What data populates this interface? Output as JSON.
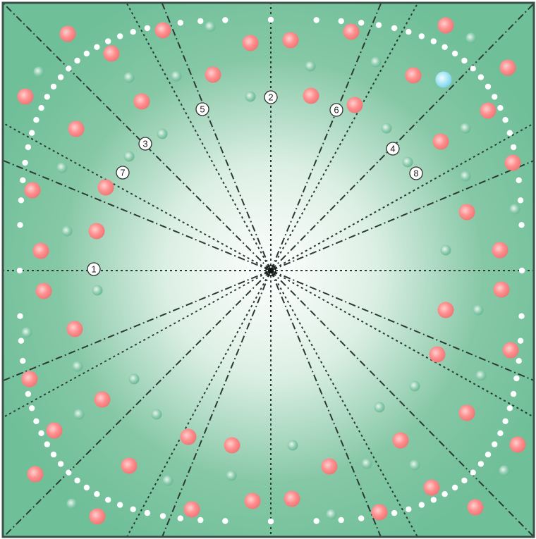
{
  "board": {
    "colors": {
      "background_center": "#ffffff",
      "background_edge": "#6fbf99",
      "frame": "#3a5048",
      "line": "#2b3a33",
      "white_dot": "#ffffff",
      "red_orb": "#ff8a8a",
      "green_orb": "#86c8a6",
      "blue_orb": "#9fe3f5"
    },
    "icons": {
      "red_orb": "red-orb-icon",
      "green_orb": "green-orb-icon",
      "blue_orb": "blue-orb-icon",
      "white_dot": "white-dot-icon"
    },
    "line_labels": [
      {
        "text": "1"
      },
      {
        "text": "2"
      },
      {
        "text": "3"
      },
      {
        "text": "4"
      },
      {
        "text": "5"
      },
      {
        "text": "6"
      },
      {
        "text": "7"
      },
      {
        "text": "8"
      }
    ]
  }
}
